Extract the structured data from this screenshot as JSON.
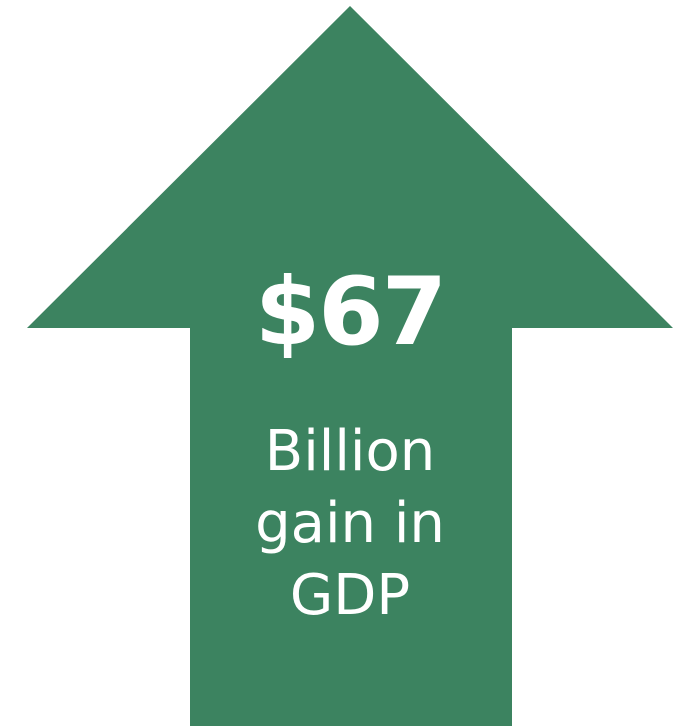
{
  "infographic": {
    "arrow_color": "#3c8360",
    "arrow_icon": "up-arrow-icon",
    "amount": "$67",
    "caption_lines": [
      "Billion",
      "gain in",
      "GDP"
    ]
  }
}
